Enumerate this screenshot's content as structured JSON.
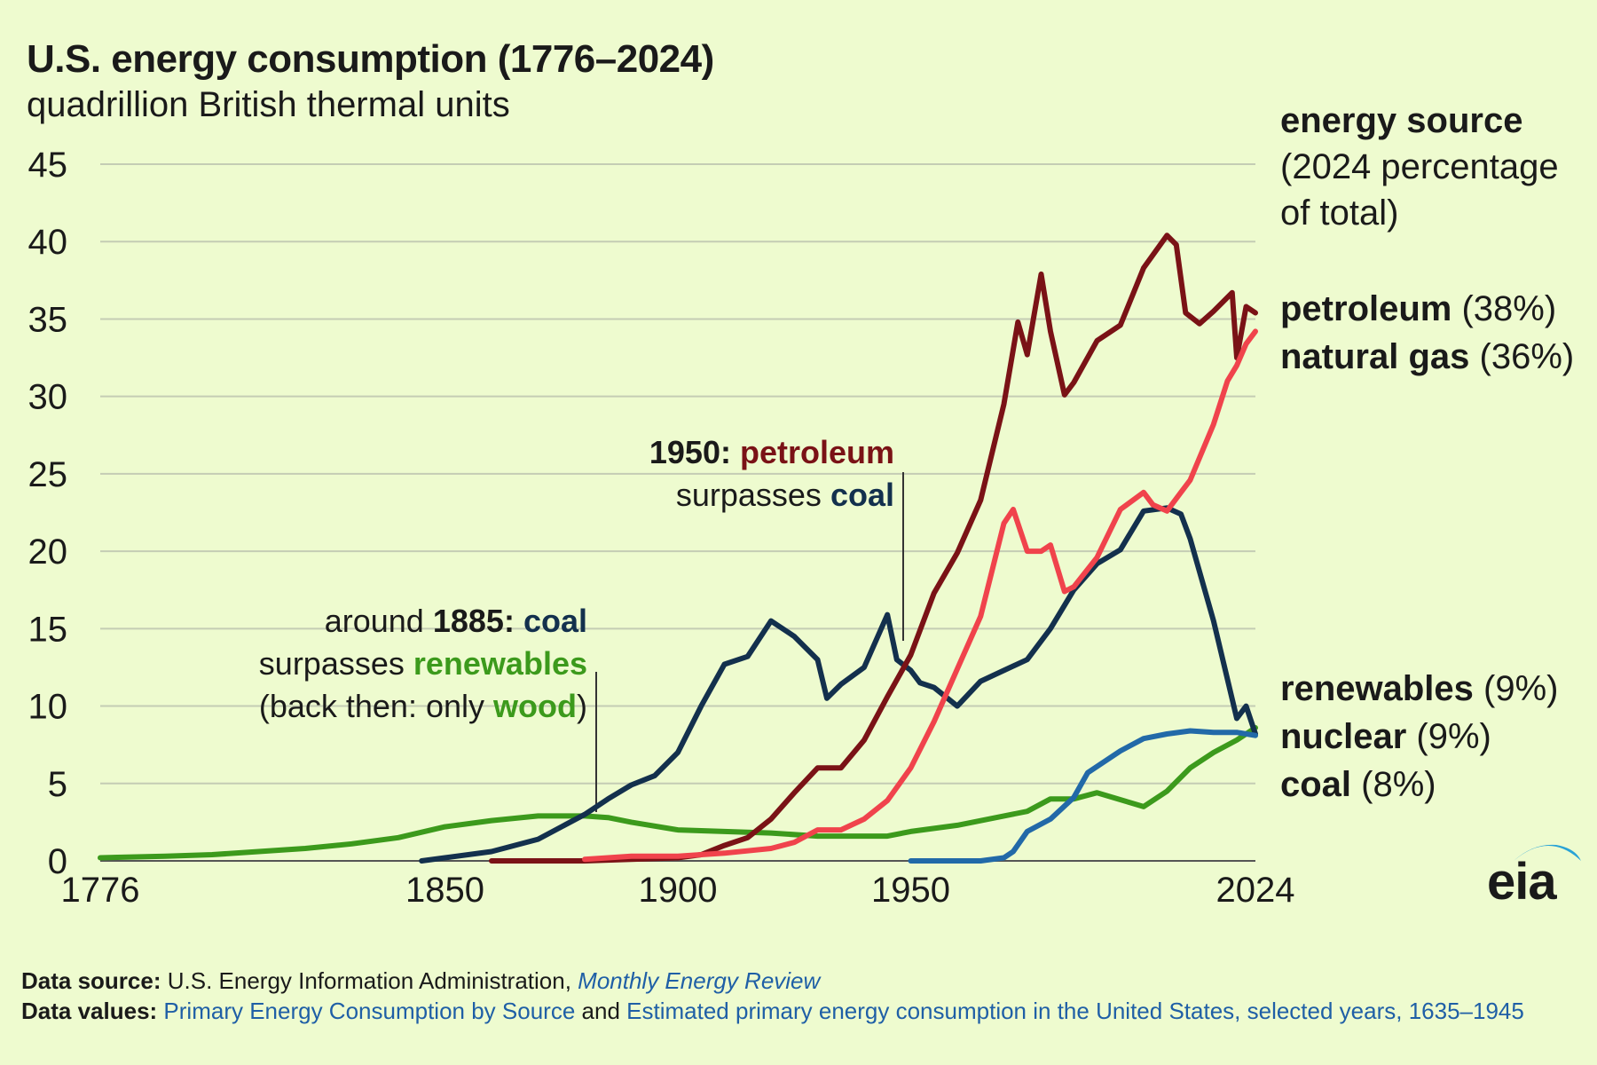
{
  "title": "U.S. energy consumption (1776–2024)",
  "subtitle": "quadrillion British thermal units",
  "legend": {
    "heading": "energy source",
    "heading_sub": "(2024 percentage of total)",
    "items": [
      {
        "name": "petroleum",
        "pct": "(38%)",
        "color": "#7a1216"
      },
      {
        "name": "natural gas",
        "pct": "(36%)",
        "color": "#f0434c"
      },
      {
        "name": "renewables",
        "pct": "(9%)",
        "color": "#3c9a1c"
      },
      {
        "name": "nuclear",
        "pct": "(9%)",
        "color": "#2269a8"
      },
      {
        "name": "coal",
        "pct": "(8%)",
        "color": "#13304d"
      }
    ]
  },
  "annotations": {
    "a1950": {
      "year": "1950:",
      "fuel1": "petroleum",
      "verb": "surpasses",
      "fuel2": "coal"
    },
    "a1885": {
      "prefix": "around",
      "year": "1885:",
      "fuel1": "coal",
      "verb": "surpasses",
      "fuel2": "renewables",
      "line3a": "(back then: only",
      "line3b": "wood",
      "line3c": ")"
    }
  },
  "footer": {
    "source_label": "Data source:",
    "source_text": "U.S. Energy Information Administration,",
    "source_pub": "Monthly Energy Review",
    "values_label": "Data values:",
    "values_link1": "Primary Energy Consumption by Source",
    "values_and": "and",
    "values_link2": "Estimated primary energy consumption in the United States, selected years, 1635–1945"
  },
  "logo": "eia",
  "chart_data": {
    "type": "line",
    "ylim": [
      0,
      45
    ],
    "xlim": [
      1776,
      2024
    ],
    "yticks": [
      "0",
      "5",
      "10",
      "15",
      "20",
      "25",
      "30",
      "35",
      "40",
      "45"
    ],
    "xticks": [
      {
        "value": 1776,
        "label": "1776"
      },
      {
        "value": 1850,
        "label": "1850"
      },
      {
        "value": 1900,
        "label": "1900"
      },
      {
        "value": 1950,
        "label": "1950"
      },
      {
        "value": 2024,
        "label": "2024"
      }
    ],
    "grid": true,
    "series": [
      {
        "name": "renewables",
        "color": "#3c9a1c",
        "x": [
          1776,
          1790,
          1800,
          1810,
          1820,
          1830,
          1840,
          1850,
          1860,
          1870,
          1880,
          1885,
          1890,
          1900,
          1910,
          1920,
          1930,
          1940,
          1945,
          1950,
          1960,
          1970,
          1975,
          1980,
          1985,
          1990,
          2000,
          2005,
          2010,
          2015,
          2020,
          2024
        ],
        "y": [
          0.2,
          0.3,
          0.4,
          0.6,
          0.8,
          1.1,
          1.5,
          2.2,
          2.6,
          2.9,
          2.9,
          2.8,
          2.5,
          2.0,
          1.9,
          1.8,
          1.6,
          1.6,
          1.6,
          1.9,
          2.3,
          2.9,
          3.2,
          4.0,
          4.0,
          4.4,
          3.5,
          4.5,
          6.0,
          7.0,
          7.8,
          8.6
        ]
      },
      {
        "name": "coal",
        "color": "#13304d",
        "x": [
          1845,
          1850,
          1860,
          1870,
          1875,
          1880,
          1885,
          1890,
          1895,
          1900,
          1905,
          1910,
          1915,
          1920,
          1925,
          1930,
          1932,
          1935,
          1940,
          1945,
          1947,
          1950,
          1952,
          1955,
          1960,
          1965,
          1970,
          1975,
          1980,
          1985,
          1990,
          1995,
          2000,
          2005,
          2008,
          2010,
          2015,
          2020,
          2022,
          2024
        ],
        "y": [
          0.0,
          0.2,
          0.6,
          1.4,
          2.2,
          3.0,
          4.0,
          4.9,
          5.5,
          7.0,
          10.0,
          12.7,
          13.2,
          15.5,
          14.5,
          13.0,
          10.5,
          11.4,
          12.5,
          15.9,
          13.0,
          12.3,
          11.5,
          11.2,
          10.0,
          11.6,
          12.3,
          13.0,
          15.0,
          17.5,
          19.2,
          20.1,
          22.6,
          22.8,
          22.4,
          20.8,
          15.5,
          9.2,
          10.0,
          8.2
        ]
      },
      {
        "name": "petroleum",
        "color": "#7a1216",
        "x": [
          1860,
          1880,
          1890,
          1900,
          1905,
          1910,
          1915,
          1920,
          1925,
          1930,
          1935,
          1940,
          1945,
          1950,
          1955,
          1960,
          1965,
          1970,
          1973,
          1975,
          1978,
          1980,
          1983,
          1985,
          1990,
          1995,
          2000,
          2005,
          2007,
          2009,
          2012,
          2015,
          2019,
          2020,
          2022,
          2024
        ],
        "y": [
          0.0,
          0.0,
          0.1,
          0.2,
          0.4,
          1.0,
          1.5,
          2.7,
          4.4,
          6.0,
          6.0,
          7.8,
          10.6,
          13.3,
          17.3,
          19.9,
          23.3,
          29.5,
          34.8,
          32.7,
          37.9,
          34.2,
          30.1,
          30.9,
          33.6,
          34.6,
          38.3,
          40.4,
          39.8,
          35.4,
          34.7,
          35.5,
          36.7,
          32.5,
          35.8,
          35.4
        ]
      },
      {
        "name": "natural gas",
        "color": "#f0434c",
        "x": [
          1880,
          1890,
          1900,
          1905,
          1910,
          1920,
          1925,
          1930,
          1935,
          1940,
          1945,
          1950,
          1955,
          1960,
          1965,
          1970,
          1972,
          1975,
          1978,
          1980,
          1983,
          1985,
          1990,
          1995,
          2000,
          2002,
          2005,
          2008,
          2010,
          2015,
          2018,
          2020,
          2022,
          2024
        ],
        "y": [
          0.1,
          0.3,
          0.3,
          0.4,
          0.5,
          0.8,
          1.2,
          2.0,
          2.0,
          2.7,
          3.9,
          6.0,
          9.0,
          12.4,
          15.8,
          21.8,
          22.7,
          20.0,
          20.0,
          20.4,
          17.4,
          17.7,
          19.6,
          22.7,
          23.8,
          23.0,
          22.6,
          23.8,
          24.6,
          28.2,
          31.0,
          32.0,
          33.4,
          34.2
        ]
      },
      {
        "name": "nuclear",
        "color": "#2269a8",
        "x": [
          1950,
          1957,
          1960,
          1965,
          1970,
          1972,
          1975,
          1980,
          1985,
          1988,
          1990,
          1995,
          2000,
          2005,
          2010,
          2015,
          2020,
          2024
        ],
        "y": [
          0.0,
          0.0,
          0.0,
          0.0,
          0.2,
          0.6,
          1.9,
          2.7,
          4.1,
          5.7,
          6.1,
          7.1,
          7.9,
          8.2,
          8.4,
          8.3,
          8.3,
          8.1
        ]
      }
    ]
  }
}
